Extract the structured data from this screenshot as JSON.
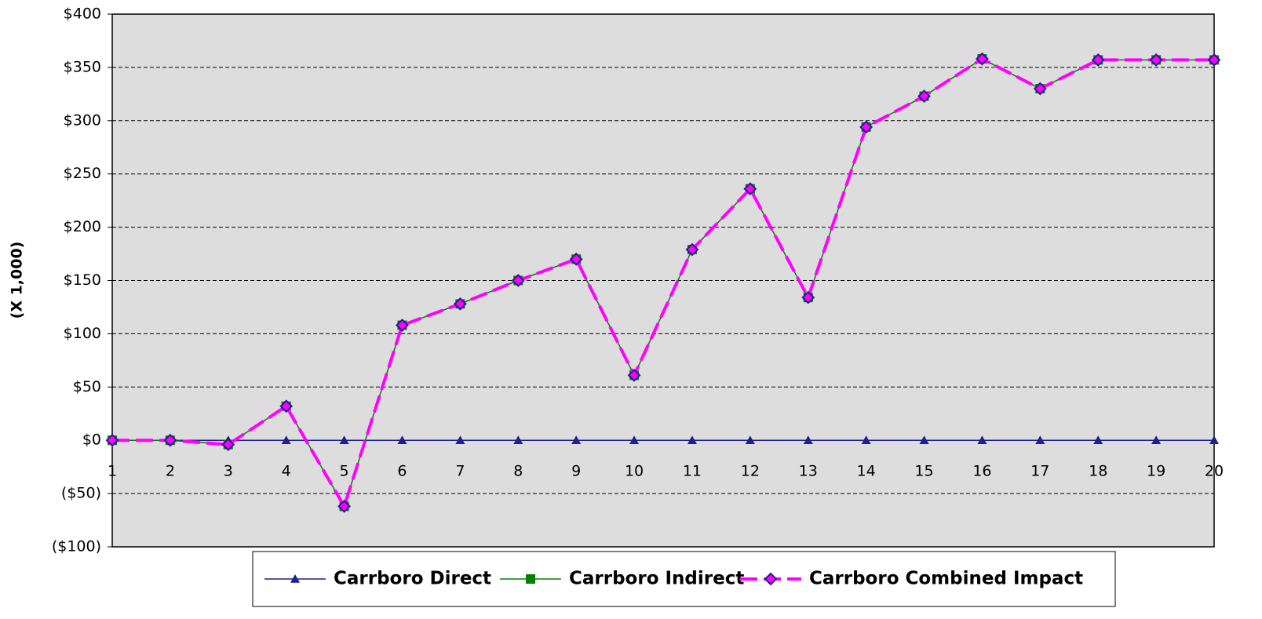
{
  "chart_data": {
    "type": "line",
    "y_label": "(X 1,000)",
    "categories": [
      "1",
      "2",
      "3",
      "4",
      "5",
      "6",
      "7",
      "8",
      "9",
      "10",
      "11",
      "12",
      "13",
      "14",
      "15",
      "16",
      "17",
      "18",
      "19",
      "20"
    ],
    "series": [
      {
        "name": "Carrboro Direct",
        "color": "#1f1f8f",
        "marker": "triangle",
        "values": [
          0,
          0,
          0,
          0,
          0,
          0,
          0,
          0,
          0,
          0,
          0,
          0,
          0,
          0,
          0,
          0,
          0,
          0,
          0,
          0
        ]
      },
      {
        "name": "Carrboro Indirect",
        "color": "#008000",
        "marker": "square",
        "values": [
          0,
          0,
          -4,
          32,
          -62,
          108,
          128,
          150,
          170,
          61,
          179,
          236,
          134,
          294,
          323,
          358,
          330,
          357,
          357,
          357
        ]
      },
      {
        "name": "Carrboro Combined Impact",
        "color": "#ff00ff",
        "marker": "diamond",
        "dashed": true,
        "values": [
          0,
          0,
          -4,
          32,
          -62,
          108,
          128,
          150,
          170,
          61,
          179,
          236,
          134,
          294,
          323,
          358,
          330,
          357,
          357,
          357
        ]
      }
    ],
    "ylim": [
      -100,
      400
    ],
    "yticks": [
      {
        "value": -100,
        "label": "($100)"
      },
      {
        "value": -50,
        "label": "($50)"
      },
      {
        "value": 0,
        "label": "$0"
      },
      {
        "value": 50,
        "label": "$50"
      },
      {
        "value": 100,
        "label": "$100"
      },
      {
        "value": 150,
        "label": "$150"
      },
      {
        "value": 200,
        "label": "$200"
      },
      {
        "value": 250,
        "label": "$250"
      },
      {
        "value": 300,
        "label": "$300"
      },
      {
        "value": 350,
        "label": "$350"
      },
      {
        "value": 400,
        "label": "$400"
      }
    ],
    "grid": true,
    "legend": "bottom"
  }
}
